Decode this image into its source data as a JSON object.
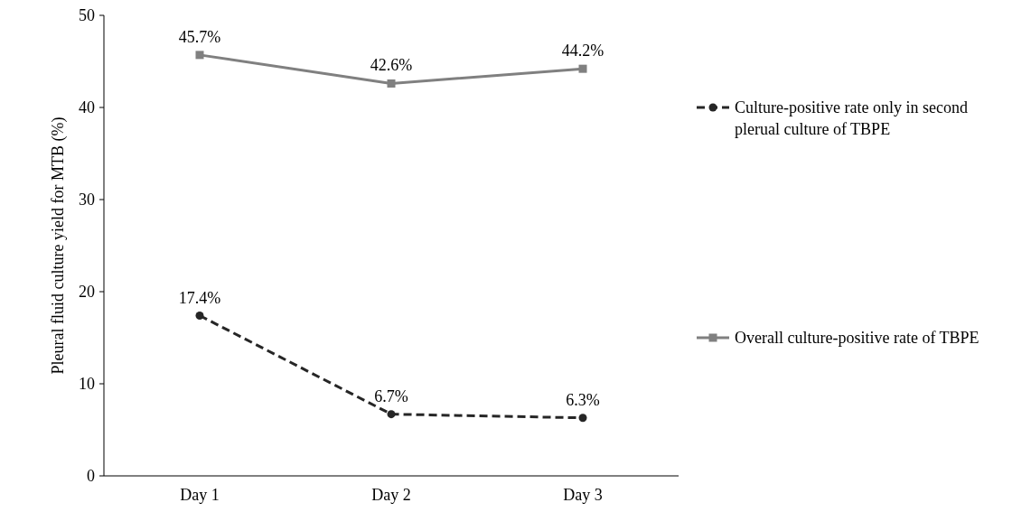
{
  "chart_data": {
    "type": "line",
    "ylabel": "Pleural fluid culture yield for MTB (%)",
    "categories": [
      "Day 1",
      "Day 2",
      "Day 3"
    ],
    "series": [
      {
        "name": "Culture-positive rate only in second plerual culture of TBPE",
        "color": "#262626",
        "values": [
          17.4,
          6.7,
          6.3
        ],
        "value_labels": [
          "17.4%",
          "6.7%",
          "6.3%"
        ],
        "marker": "circle",
        "line_style": "dashed"
      },
      {
        "name": "Overall culture-positive rate of TBPE",
        "color": "#808080",
        "values": [
          45.7,
          42.6,
          44.2
        ],
        "value_labels": [
          "45.7%",
          "42.6%",
          "44.2%"
        ],
        "marker": "square",
        "line_style": "solid"
      }
    ],
    "ylim": [
      0,
      50
    ],
    "yticks": [
      0,
      10,
      20,
      30,
      40,
      50
    ],
    "grid": false,
    "legend": "right"
  }
}
